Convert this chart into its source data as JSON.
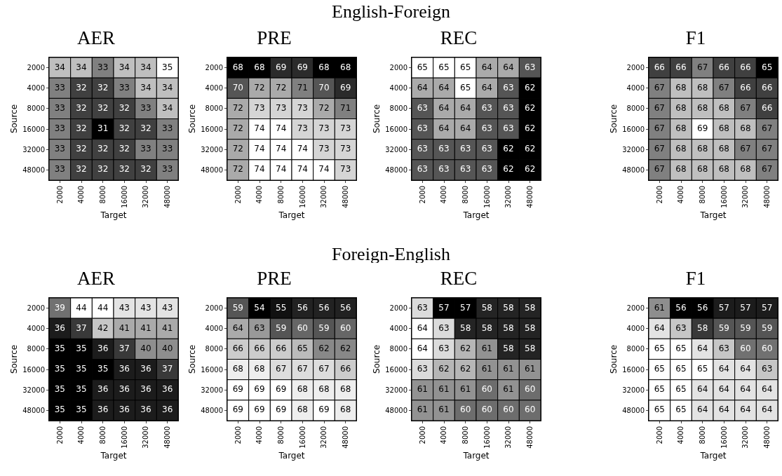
{
  "chart_data": [
    {
      "type": "other",
      "title": "English-Foreign"
    },
    {
      "type": "heatmap",
      "title": "AER",
      "xlabel": "Target",
      "ylabel": "Source",
      "data_labels": true,
      "categories": [
        "2000",
        "4000",
        "8000",
        "16000",
        "32000",
        "48000"
      ],
      "y_categories": [
        "2000",
        "4000",
        "8000",
        "16000",
        "32000",
        "48000"
      ],
      "cells": [
        [
          34,
          34,
          33,
          34,
          34,
          35
        ],
        [
          33,
          32,
          32,
          33,
          34,
          34
        ],
        [
          33,
          32,
          32,
          32,
          33,
          34
        ],
        [
          33,
          32,
          31,
          32,
          32,
          33
        ],
        [
          33,
          32,
          32,
          32,
          33,
          33
        ],
        [
          33,
          32,
          32,
          32,
          32,
          33
        ]
      ]
    },
    {
      "type": "heatmap",
      "title": "PRE",
      "xlabel": "Target",
      "ylabel": "Source",
      "data_labels": true,
      "categories": [
        "2000",
        "4000",
        "8000",
        "16000",
        "32000",
        "48000"
      ],
      "y_categories": [
        "2000",
        "4000",
        "8000",
        "16000",
        "32000",
        "48000"
      ],
      "cells": [
        [
          68,
          68,
          69,
          69,
          68,
          68
        ],
        [
          70,
          72,
          72,
          71,
          70,
          69
        ],
        [
          72,
          73,
          73,
          73,
          72,
          71
        ],
        [
          72,
          74,
          74,
          73,
          73,
          73
        ],
        [
          72,
          74,
          74,
          74,
          73,
          73
        ],
        [
          72,
          74,
          74,
          74,
          74,
          73
        ]
      ]
    },
    {
      "type": "heatmap",
      "title": "REC",
      "xlabel": "Target",
      "ylabel": "Source",
      "data_labels": true,
      "categories": [
        "2000",
        "4000",
        "8000",
        "16000",
        "32000",
        "48000"
      ],
      "y_categories": [
        "2000",
        "4000",
        "8000",
        "16000",
        "32000",
        "48000"
      ],
      "cells": [
        [
          65,
          65,
          65,
          64,
          64,
          63
        ],
        [
          64,
          64,
          65,
          64,
          63,
          62
        ],
        [
          63,
          64,
          64,
          63,
          63,
          62
        ],
        [
          63,
          64,
          64,
          63,
          63,
          62
        ],
        [
          63,
          63,
          63,
          63,
          62,
          62
        ],
        [
          63,
          63,
          63,
          63,
          62,
          62
        ]
      ]
    },
    {
      "type": "heatmap",
      "title": "F1",
      "xlabel": "Target",
      "ylabel": "Source",
      "data_labels": true,
      "categories": [
        "2000",
        "4000",
        "8000",
        "16000",
        "32000",
        "48000"
      ],
      "y_categories": [
        "2000",
        "4000",
        "8000",
        "16000",
        "32000",
        "48000"
      ],
      "cells": [
        [
          66,
          66,
          67,
          66,
          66,
          65
        ],
        [
          67,
          68,
          68,
          67,
          66,
          66
        ],
        [
          67,
          68,
          68,
          68,
          67,
          66
        ],
        [
          67,
          68,
          69,
          68,
          68,
          67
        ],
        [
          67,
          68,
          68,
          68,
          67,
          67
        ],
        [
          67,
          68,
          68,
          68,
          68,
          67
        ]
      ]
    },
    {
      "type": "other",
      "title": "Foreign-English"
    },
    {
      "type": "heatmap",
      "title": "AER",
      "xlabel": "Target",
      "ylabel": "Source",
      "data_labels": true,
      "categories": [
        "2000",
        "4000",
        "8000",
        "16000",
        "32000",
        "48000"
      ],
      "y_categories": [
        "2000",
        "4000",
        "8000",
        "16000",
        "32000",
        "48000"
      ],
      "cells": [
        [
          39,
          44,
          44,
          43,
          43,
          43
        ],
        [
          36,
          37,
          42,
          41,
          41,
          41
        ],
        [
          35,
          35,
          36,
          37,
          40,
          40
        ],
        [
          35,
          35,
          35,
          36,
          36,
          37
        ],
        [
          35,
          35,
          36,
          36,
          36,
          36
        ],
        [
          35,
          35,
          36,
          36,
          36,
          36
        ]
      ]
    },
    {
      "type": "heatmap",
      "title": "PRE",
      "xlabel": "Target",
      "ylabel": "Source",
      "data_labels": true,
      "categories": [
        "2000",
        "4000",
        "8000",
        "16000",
        "32000",
        "48000"
      ],
      "y_categories": [
        "2000",
        "4000",
        "8000",
        "16000",
        "32000",
        "48000"
      ],
      "cells": [
        [
          59,
          54,
          55,
          56,
          56,
          56
        ],
        [
          64,
          63,
          59,
          60,
          59,
          60
        ],
        [
          66,
          66,
          66,
          65,
          62,
          62
        ],
        [
          68,
          68,
          67,
          67,
          67,
          66
        ],
        [
          69,
          69,
          69,
          68,
          68,
          68
        ],
        [
          69,
          69,
          69,
          68,
          69,
          68
        ]
      ]
    },
    {
      "type": "heatmap",
      "title": "REC",
      "xlabel": "Target",
      "ylabel": "Source",
      "data_labels": true,
      "categories": [
        "2000",
        "4000",
        "8000",
        "16000",
        "32000",
        "48000"
      ],
      "y_categories": [
        "2000",
        "4000",
        "8000",
        "16000",
        "32000",
        "48000"
      ],
      "cells": [
        [
          63,
          57,
          57,
          58,
          58,
          58
        ],
        [
          64,
          63,
          58,
          58,
          58,
          58
        ],
        [
          64,
          63,
          62,
          61,
          58,
          58
        ],
        [
          63,
          62,
          62,
          61,
          61,
          61
        ],
        [
          61,
          61,
          61,
          60,
          61,
          60
        ],
        [
          61,
          61,
          60,
          60,
          60,
          60
        ]
      ]
    },
    {
      "type": "heatmap",
      "title": "F1",
      "xlabel": "Target",
      "ylabel": "Source",
      "data_labels": true,
      "categories": [
        "2000",
        "4000",
        "8000",
        "16000",
        "32000",
        "48000"
      ],
      "y_categories": [
        "2000",
        "4000",
        "8000",
        "16000",
        "32000",
        "48000"
      ],
      "cells": [
        [
          61,
          56,
          56,
          57,
          57,
          57
        ],
        [
          64,
          63,
          58,
          59,
          59,
          59
        ],
        [
          65,
          65,
          64,
          63,
          60,
          60
        ],
        [
          65,
          65,
          65,
          64,
          64,
          63
        ],
        [
          65,
          65,
          64,
          64,
          64,
          64
        ],
        [
          65,
          65,
          64,
          64,
          64,
          64
        ]
      ]
    }
  ]
}
